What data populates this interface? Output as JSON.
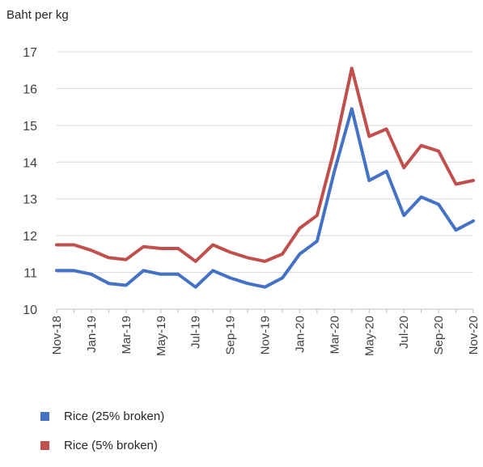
{
  "chart_data": {
    "type": "line",
    "ylabel": "Baht per kg",
    "xlabel": "",
    "ylim": [
      10,
      17
    ],
    "yticks": [
      10,
      11,
      12,
      13,
      14,
      15,
      16,
      17
    ],
    "grid": true,
    "legend_position": "bottom-left",
    "x": [
      "Nov-18",
      "Dec-18",
      "Jan-19",
      "Feb-19",
      "Mar-19",
      "Apr-19",
      "May-19",
      "Jun-19",
      "Jul-19",
      "Aug-19",
      "Sep-19",
      "Oct-19",
      "Nov-19",
      "Dec-19",
      "Jan-20",
      "Feb-20",
      "Mar-20",
      "Apr-20",
      "May-20",
      "Jun-20",
      "Jul-20",
      "Aug-20",
      "Sep-20",
      "Oct-20",
      "Nov-20"
    ],
    "xtick_labels": [
      "Nov-18",
      "Jan-19",
      "Mar-19",
      "May-19",
      "Jul-19",
      "Sep-19",
      "Nov-19",
      "Jan-20",
      "Mar-20",
      "May-20",
      "Jul-20",
      "Sep-20",
      "Nov-20"
    ],
    "series": [
      {
        "name": "Rice (25% broken)",
        "color": "#4472c4",
        "values": [
          11.05,
          11.05,
          10.95,
          10.7,
          10.65,
          11.05,
          10.95,
          10.95,
          10.6,
          11.05,
          10.85,
          10.7,
          10.6,
          10.85,
          11.5,
          11.85,
          13.75,
          15.45,
          13.5,
          13.75,
          12.55,
          13.05,
          12.85,
          12.15,
          12.4
        ]
      },
      {
        "name": "Rice (5% broken)",
        "color": "#c0504d",
        "values": [
          11.75,
          11.75,
          11.6,
          11.4,
          11.35,
          11.7,
          11.65,
          11.65,
          11.3,
          11.75,
          11.55,
          11.4,
          11.3,
          11.5,
          12.2,
          12.55,
          14.35,
          16.55,
          14.7,
          14.9,
          13.85,
          14.45,
          14.3,
          13.4,
          13.5
        ]
      }
    ]
  }
}
